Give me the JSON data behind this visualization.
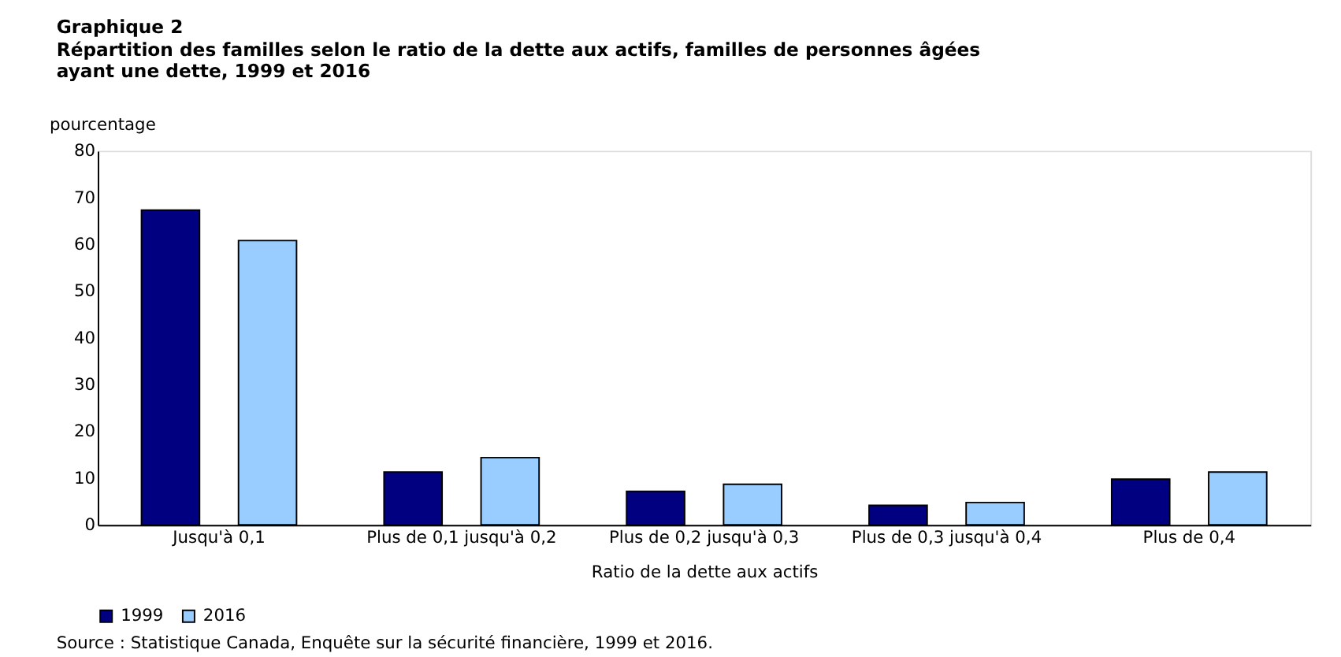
{
  "chart_data": {
    "type": "bar",
    "title": "Graphique  2",
    "subtitle": "Répartition  des familles  selon le ratio de la dette aux actifs, familles  de personnes  âgées ayant une dette, 1999 et 2016",
    "ylabel": "pourcentage",
    "xlabel": "Ratio de la dette aux actifs",
    "categories": [
      "Jusqu'à 0,1",
      "Plus de 0,1  jusqu'à 0,2",
      "Plus de 0,2  jusqu'à 0,3",
      "Plus de 0,3  jusqu'à 0,4",
      "Plus de 0,4"
    ],
    "series": [
      {
        "name": "1999",
        "color": "#000080",
        "values": [
          67.3,
          11.3,
          7.2,
          4.2,
          9.8
        ]
      },
      {
        "name": "2016",
        "color": "#99ccff",
        "values": [
          60.8,
          14.4,
          8.7,
          4.8,
          11.3
        ]
      }
    ],
    "ylim": [
      0,
      80
    ],
    "yticks": [
      0,
      10,
      20,
      30,
      40,
      50,
      60,
      70,
      80
    ],
    "grid": false,
    "legend": "bottom",
    "annotations": [
      "Source : Statistique  Canada, Enquête sur la sécurité financière, 1999  et 2016."
    ]
  }
}
